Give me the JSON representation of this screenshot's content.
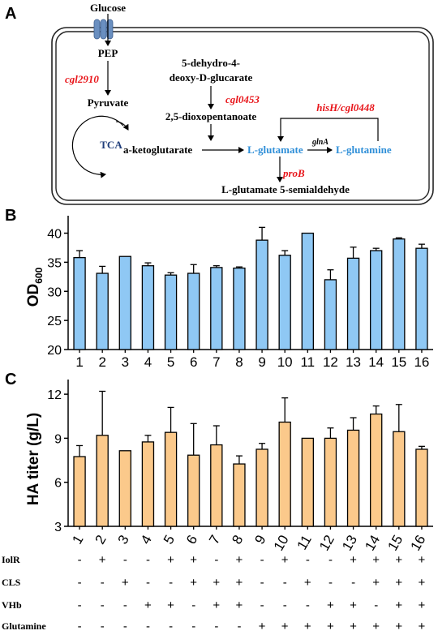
{
  "colors": {
    "bar_b": "#8fc8f4",
    "bar_c": "#fbc98b",
    "gene_red": "#e8161b",
    "metabolite_blue": "#2f8fd8",
    "tca_navy": "#1f3d7a",
    "transporter": "#6a8fc0"
  },
  "panel_a": {
    "letter": "A",
    "glucose": "Glucose",
    "pep": "PEP",
    "gene_cgl2910": "cgl2910",
    "pyruvate": "Pyruvate",
    "tca": "TCA",
    "dehydro_line1": "5-dehydro-4-",
    "dehydro_line2": "deoxy-D-glucarate",
    "gene_cgl0453": "cgl0453",
    "dioxopentanoate": "2,5-dioxopentanoate",
    "gene_hisH": "hisH/cgl0448",
    "ketoglutarate": "a-ketoglutarate",
    "l_glutamate": "L-glutamate",
    "gene_glnA": "glnA",
    "l_glutamine": "L-glutamine",
    "gene_proB": "proB",
    "semialdehyde": "L-glutamate 5-semialdehyde"
  },
  "chart_data": [
    {
      "panel": "B",
      "type": "bar",
      "ylabel": "OD600",
      "ylabel_main": "OD",
      "ylabel_sub": "600",
      "ylim": [
        20,
        43
      ],
      "yticks": [
        20,
        25,
        30,
        35,
        40
      ],
      "categories": [
        "1",
        "2",
        "3",
        "4",
        "5",
        "6",
        "7",
        "8",
        "9",
        "10",
        "11",
        "12",
        "13",
        "14",
        "15",
        "16"
      ],
      "values": [
        35.8,
        33.1,
        36.0,
        34.4,
        32.8,
        33.1,
        34.1,
        34.0,
        38.8,
        36.2,
        40.0,
        32.0,
        35.7,
        37.0,
        39.0,
        37.4
      ],
      "errors": [
        1.2,
        1.2,
        0.0,
        0.5,
        0.4,
        1.5,
        0.3,
        0.2,
        2.2,
        0.8,
        0.0,
        1.7,
        1.9,
        0.4,
        0.2,
        0.7
      ]
    },
    {
      "panel": "C",
      "type": "bar",
      "ylabel": "HA titer (g/L)",
      "ylim": [
        3,
        13
      ],
      "yticks": [
        3,
        6,
        9,
        12
      ],
      "categories": [
        "1",
        "2",
        "3",
        "4",
        "5",
        "6",
        "7",
        "8",
        "9",
        "10",
        "11",
        "12",
        "13",
        "14",
        "15",
        "16"
      ],
      "values": [
        7.75,
        9.2,
        8.15,
        8.75,
        9.4,
        7.85,
        8.55,
        7.25,
        8.25,
        10.1,
        9.0,
        9.0,
        9.55,
        10.65,
        9.45,
        8.25
      ],
      "errors": [
        0.75,
        3.0,
        0.0,
        0.45,
        1.7,
        2.15,
        1.3,
        0.55,
        0.4,
        1.65,
        0.0,
        0.7,
        0.85,
        0.55,
        1.85,
        0.2
      ]
    }
  ],
  "conditions": {
    "rows": [
      {
        "label": "IolR",
        "signs": [
          "-",
          "+",
          "-",
          "-",
          "+",
          "+",
          "-",
          "+",
          "-",
          "+",
          "-",
          "-",
          "+",
          "+",
          "+",
          "+"
        ]
      },
      {
        "label": "CLS",
        "signs": [
          "-",
          "-",
          "+",
          "-",
          "-",
          "+",
          "+",
          "+",
          "-",
          "-",
          "+",
          "-",
          "-",
          "+",
          "+",
          "+"
        ]
      },
      {
        "label": "VHb",
        "signs": [
          "-",
          "-",
          "-",
          "+",
          "+",
          "-",
          "+",
          "+",
          "-",
          "-",
          "-",
          "+",
          "+",
          "-",
          "+",
          "+"
        ]
      },
      {
        "label": "Glutamine",
        "signs": [
          "-",
          "-",
          "-",
          "-",
          "-",
          "-",
          "-",
          "-",
          "+",
          "+",
          "+",
          "+",
          "+",
          "+",
          "+",
          "+"
        ]
      }
    ]
  }
}
